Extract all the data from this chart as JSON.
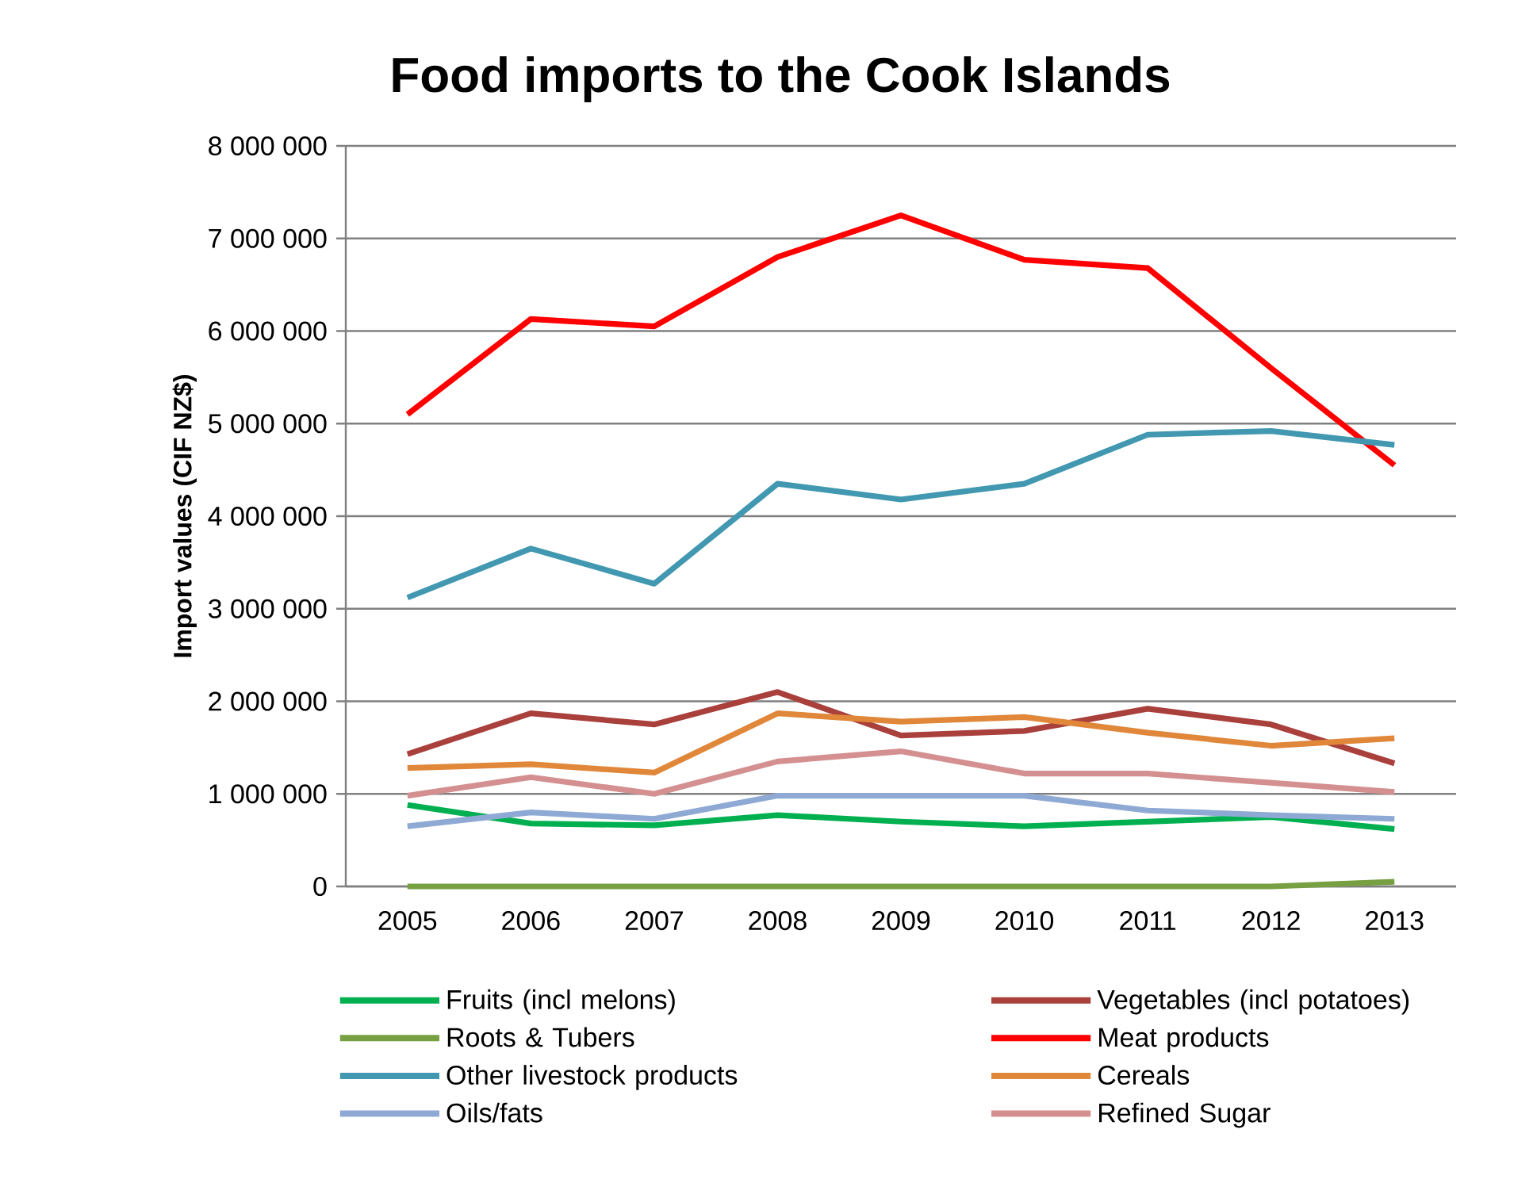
{
  "chart_data": {
    "type": "line",
    "title": "Food imports to the Cook Islands",
    "ylabel": "Import values (CIF NZ$)",
    "categories": [
      "2005",
      "2006",
      "2007",
      "2008",
      "2009",
      "2010",
      "2011",
      "2012",
      "2013"
    ],
    "ylim": [
      0,
      8000000
    ],
    "yticks": [
      {
        "value": 0,
        "label": "0"
      },
      {
        "value": 1000000,
        "label": "1 000 000"
      },
      {
        "value": 2000000,
        "label": "2 000 000"
      },
      {
        "value": 3000000,
        "label": "3 000 000"
      },
      {
        "value": 4000000,
        "label": "4 000 000"
      },
      {
        "value": 5000000,
        "label": "5 000 000"
      },
      {
        "value": 6000000,
        "label": "6 000 000"
      },
      {
        "value": 7000000,
        "label": "7 000 000"
      },
      {
        "value": 8000000,
        "label": "8 000 000"
      }
    ],
    "grid": "y",
    "legend": "bottom",
    "marker": "none",
    "line_style": "solid",
    "series": [
      {
        "name": "Fruits (incl melons)",
        "color": "#00b050",
        "values": [
          880000,
          680000,
          660000,
          770000,
          700000,
          650000,
          700000,
          750000,
          620000
        ]
      },
      {
        "name": "Vegetables (incl potatoes)",
        "color": "#a9403c",
        "values": [
          1430000,
          1870000,
          1750000,
          2100000,
          1630000,
          1680000,
          1920000,
          1750000,
          1330000
        ]
      },
      {
        "name": "Roots & Tubers",
        "color": "#77a043",
        "values": [
          0,
          0,
          0,
          0,
          0,
          0,
          0,
          0,
          50000
        ]
      },
      {
        "name": "Meat products",
        "color": "#ff0000",
        "values": [
          5100000,
          6130000,
          6050000,
          6800000,
          7250000,
          6770000,
          6680000,
          5600000,
          4550000
        ]
      },
      {
        "name": "Other livestock products",
        "color": "#4198b0",
        "values": [
          3120000,
          3650000,
          3270000,
          4350000,
          4180000,
          4350000,
          4880000,
          4920000,
          4770000
        ]
      },
      {
        "name": "Cereals",
        "color": "#e0873a",
        "values": [
          1280000,
          1320000,
          1230000,
          1870000,
          1780000,
          1830000,
          1660000,
          1520000,
          1600000
        ]
      },
      {
        "name": "Oils/fats",
        "color": "#8eaad4",
        "values": [
          650000,
          800000,
          730000,
          980000,
          980000,
          980000,
          820000,
          770000,
          730000
        ]
      },
      {
        "name": "Refined Sugar",
        "color": "#d49090",
        "values": [
          980000,
          1180000,
          1000000,
          1350000,
          1460000,
          1220000,
          1220000,
          1120000,
          1020000
        ]
      }
    ]
  }
}
